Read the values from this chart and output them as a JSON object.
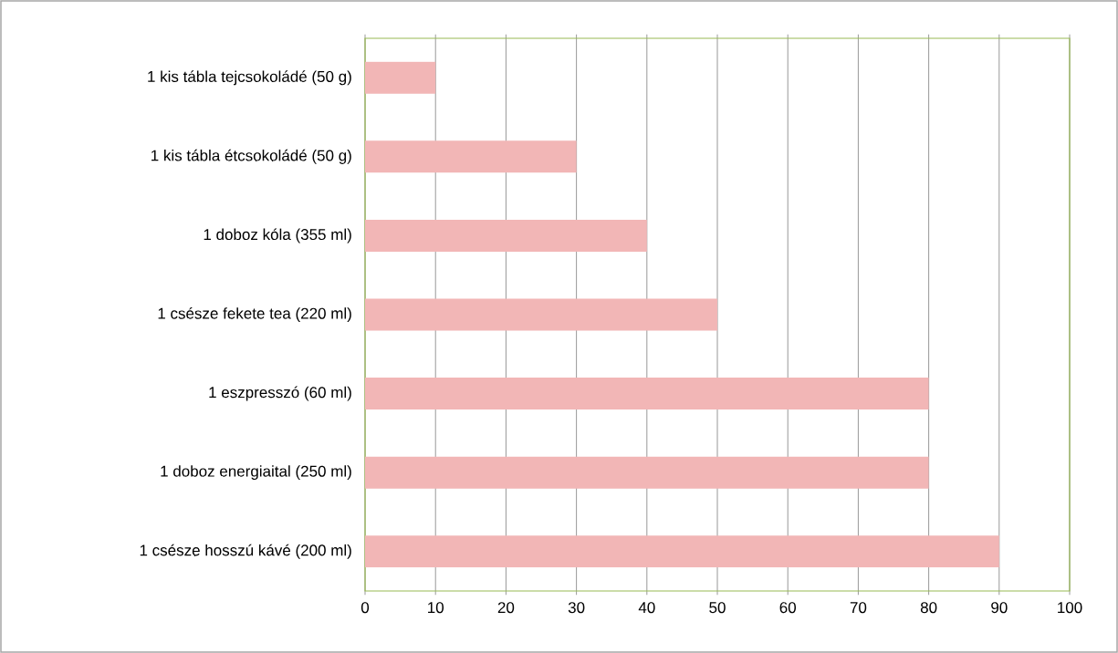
{
  "chart_data": {
    "type": "bar",
    "orientation": "horizontal",
    "categories": [
      "1 kis tábla tejcsokoládé (50 g)",
      "1 kis tábla étcsokoládé (50 g)",
      "1 doboz kóla (355 ml)",
      "1 csésze fekete tea (220 ml)",
      "1 eszpresszó (60 ml)",
      "1 doboz energiaital (250 ml)",
      "1 csésze hosszú kávé (200 ml)"
    ],
    "values": [
      10,
      30,
      40,
      50,
      80,
      80,
      90
    ],
    "color": "#f2b6b6",
    "xlim": [
      0,
      100
    ],
    "xticks": [
      0,
      10,
      20,
      30,
      40,
      50,
      60,
      70,
      80,
      90,
      100
    ],
    "grid": "x"
  }
}
